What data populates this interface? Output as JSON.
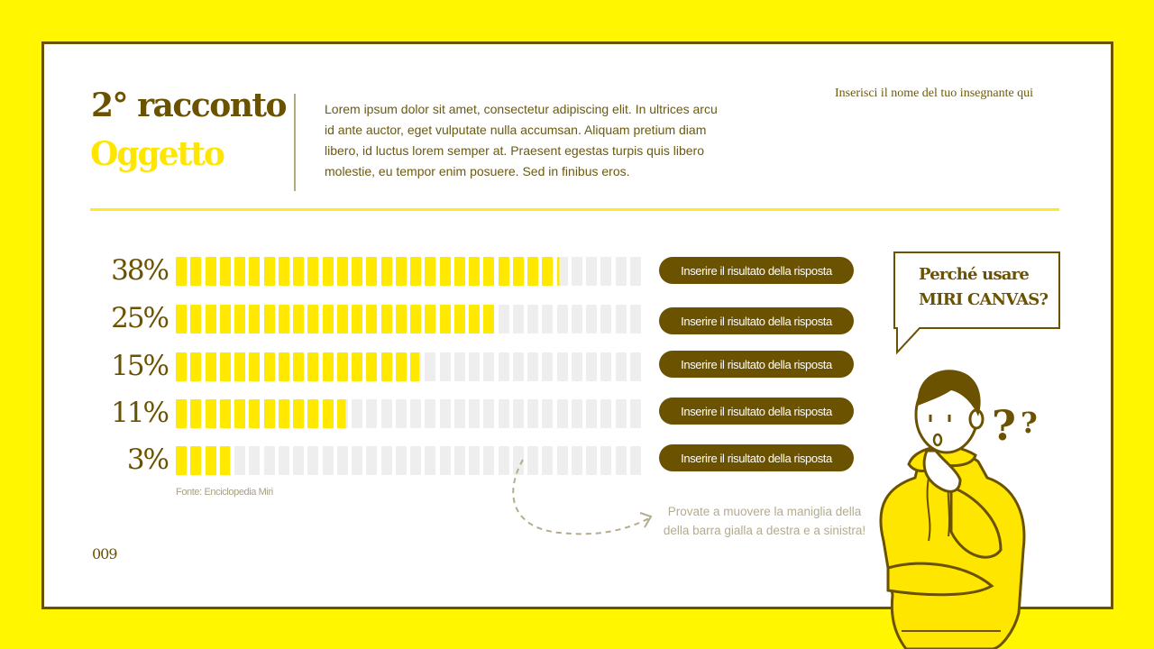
{
  "header": {
    "title_line1": "2° racconto",
    "title_line2": "Oggetto",
    "body_text": "Lorem ipsum dolor sit amet, consectetur adipiscing elit. In ultrices arcu id ante auctor, eget vulputate nulla accumsan. Aliquam pretium diam libero, id luctus lorem semper at. Praesent egestas turpis quis libero molestie, eu tempor enim posuere. Sed in finibus eros.",
    "teacher_name": "Inserisci il nome del tuo insegnante qui"
  },
  "colors": {
    "background": "#FFF600",
    "frame_border": "#6B5200",
    "accent_yellow": "#FFE900",
    "brown": "#6B5200",
    "track_gray": "#EFEEEF"
  },
  "chart_data": {
    "type": "bar",
    "orientation": "horizontal",
    "style": "segmented progress bars",
    "segments_per_bar": 32,
    "categories": [
      "Inserire il risultato della risposta",
      "Inserire il risultato della risposta",
      "Inserire il risultato della risposta",
      "Inserire il risultato della risposta",
      "Inserire il risultato della risposta"
    ],
    "values": [
      38,
      25,
      15,
      11,
      3
    ],
    "value_labels": [
      "38%",
      "25%",
      "15%",
      "11%",
      "3%"
    ],
    "visual_fill_fraction": [
      0.817,
      0.681,
      0.519,
      0.362,
      0.115
    ],
    "source": "Fonte: Enciclopedia Miri",
    "xlabel": "",
    "ylabel": ""
  },
  "rows": [
    {
      "label": "38%",
      "answer": "Inserire il risultato della risposta",
      "fill": 0.817
    },
    {
      "label": "25%",
      "answer": "Inserire il risultato della risposta",
      "fill": 0.681
    },
    {
      "label": "15%",
      "answer": "Inserire il risultato della risposta",
      "fill": 0.519
    },
    {
      "label": "11%",
      "answer": "Inserire il risultato della risposta",
      "fill": 0.362
    },
    {
      "label": "3%",
      "answer": "Inserire il risultato della risposta",
      "fill": 0.115
    }
  ],
  "source": "Fonte: Enciclopedia Miri",
  "hint": {
    "line1": "Provate a muovere la maniglia della",
    "line2": "della barra gialla a destra e a sinistra!"
  },
  "speech_bubble": {
    "line1": "Perché usare",
    "line2": "MIRI CANVAS?"
  },
  "illustration": {
    "question_marks": "??"
  },
  "page_number": "009"
}
